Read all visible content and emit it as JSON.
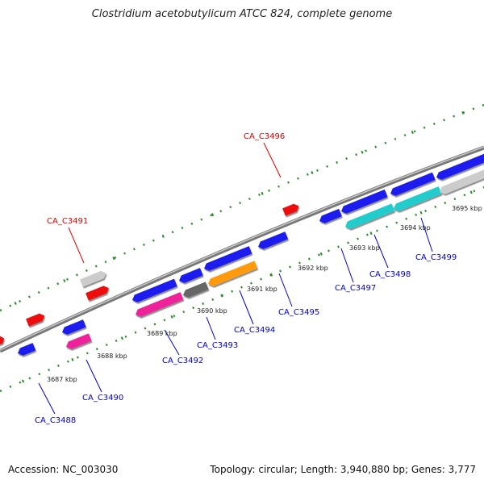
{
  "title": "Clostridium acetobutylicum ATCC 824, complete genome",
  "footer": {
    "accession": "Accession: NC_003030",
    "topology": "Topology: circular; Length: 3,940,880 bp; Genes: 3,777"
  },
  "colors": {
    "backbone": "#888888",
    "tick_marks": "#2e8b2e",
    "label_forward": "#dd0000",
    "label_reverse": "#0000cc",
    "blue_gene": "#1a1aee",
    "red_gene": "#ee1111",
    "gray_gene": "#cccccc",
    "pink_gene": "#ee2299",
    "orange_gene": "#ff9911",
    "dark_gray_gene": "#666666",
    "cyan_gene": "#22cccc"
  },
  "scale_labels": [
    "3687 kbp",
    "3688 kbp",
    "3689 kbp",
    "3690 kbp",
    "3691 kbp",
    "3692 kbp",
    "3693 kbp",
    "3694 kbp",
    "3695 kbp"
  ],
  "labeled_genes": [
    "CA_C3491",
    "CA_C3496",
    "CA_C3488",
    "CA_C3490",
    "CA_C3492",
    "CA_C3493",
    "CA_C3494",
    "CA_C3495",
    "CA_C3497",
    "CA_C3498",
    "CA_C3499"
  ]
}
